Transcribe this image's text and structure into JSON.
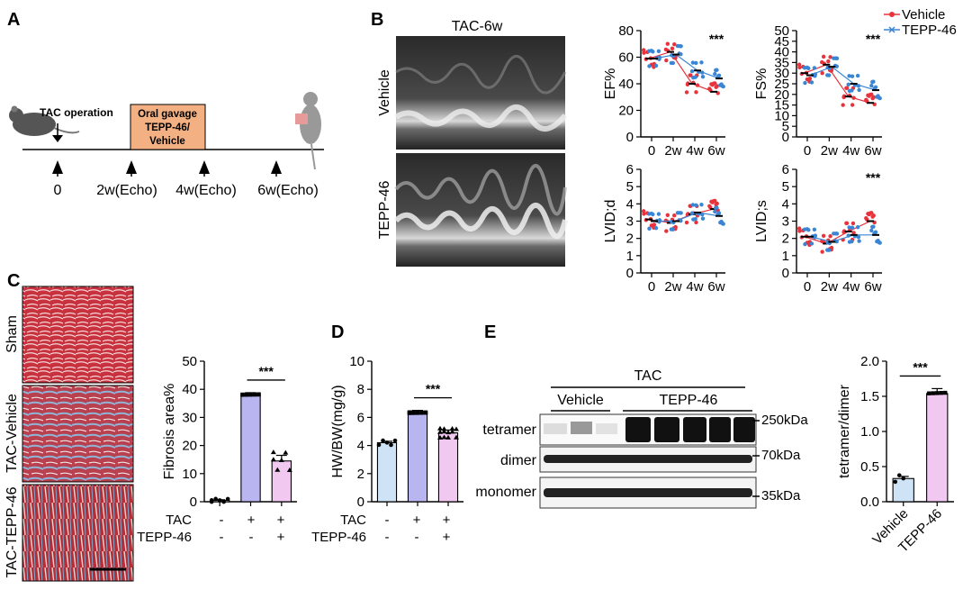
{
  "panels": {
    "a": "A",
    "b": "B",
    "c": "C",
    "d": "D",
    "e": "E"
  },
  "panel_a": {
    "tac_operation": "TAC operation",
    "gavage_line1": "Oral gavage",
    "gavage_line2": "TEPP-46/",
    "gavage_line3": "Vehicle",
    "timepoints": [
      "0",
      "2w(Echo)",
      "4w(Echo)",
      "6w(Echo)"
    ],
    "colors": {
      "gavage_box": "#f3b183"
    }
  },
  "panel_b": {
    "echo_title": "TAC-6w",
    "echo_rows": [
      "Vehicle",
      "TEPP-46"
    ],
    "legend": [
      "Vehicle",
      "TEPP-46"
    ],
    "colors": {
      "vehicle": "#e8323c",
      "tepp": "#3a86d4"
    }
  },
  "panel_c": {
    "histology_rows": [
      "Sham",
      "TAC-Vehicle",
      "TAC-TEPP-46"
    ],
    "row_labels": [
      "TAC",
      "TEPP-46"
    ],
    "row_values": [
      [
        "-",
        "+",
        "+"
      ],
      [
        "-",
        "-",
        "+"
      ]
    ]
  },
  "panel_d": {
    "row_labels": [
      "TAC",
      "TEPP-46"
    ],
    "row_values": [
      [
        "-",
        "+",
        "+"
      ],
      [
        "-",
        "-",
        "+"
      ]
    ]
  },
  "panel_e": {
    "blot_group": "TAC",
    "blot_sub": [
      "Vehicle",
      "TEPP-46"
    ],
    "blot_rows": [
      "tetramer",
      "dimer",
      "monomer"
    ],
    "markers": [
      "250kDa",
      "70kDa",
      "35kDa"
    ]
  },
  "chart_data": [
    {
      "id": "ef",
      "type": "scatter",
      "ylabel": "EF%",
      "categories": [
        "0",
        "2w",
        "4w",
        "6w"
      ],
      "ylim": [
        0,
        80
      ],
      "yticks": [
        0,
        20,
        40,
        60,
        80
      ],
      "annotation": "***",
      "series": [
        {
          "name": "Vehicle",
          "means": [
            59,
            64,
            40,
            34
          ]
        },
        {
          "name": "TEPP-46",
          "means": [
            59,
            62,
            50,
            44
          ]
        }
      ]
    },
    {
      "id": "fs",
      "type": "scatter",
      "ylabel": "FS%",
      "categories": [
        "0",
        "2w",
        "4w",
        "6w"
      ],
      "ylim": [
        0,
        50
      ],
      "yticks": [
        0,
        5,
        10,
        15,
        20,
        25,
        30,
        35,
        40,
        45,
        50
      ],
      "annotation": "***",
      "series": [
        {
          "name": "Vehicle",
          "means": [
            30,
            34,
            19,
            16
          ]
        },
        {
          "name": "TEPP-46",
          "means": [
            29,
            33,
            25,
            22
          ]
        }
      ]
    },
    {
      "id": "lvidd",
      "type": "scatter",
      "ylabel": "LVID;d",
      "categories": [
        "0",
        "2w",
        "4w",
        "6w"
      ],
      "ylim": [
        0,
        6
      ],
      "yticks": [
        0,
        1,
        2,
        3,
        4,
        5,
        6
      ],
      "annotation": "",
      "series": [
        {
          "name": "Vehicle",
          "means": [
            3.1,
            2.9,
            3.4,
            3.7
          ]
        },
        {
          "name": "TEPP-46",
          "means": [
            3.0,
            3.0,
            3.5,
            3.3
          ]
        }
      ]
    },
    {
      "id": "lvids",
      "type": "scatter",
      "ylabel": "LVID;s",
      "categories": [
        "0",
        "2w",
        "4w",
        "6w"
      ],
      "ylim": [
        0,
        6
      ],
      "yticks": [
        0,
        1,
        2,
        3,
        4,
        5,
        6
      ],
      "annotation": "***",
      "series": [
        {
          "name": "Vehicle",
          "means": [
            2.1,
            1.7,
            2.4,
            3.0
          ]
        },
        {
          "name": "TEPP-46",
          "means": [
            2.1,
            1.8,
            2.2,
            2.2
          ]
        }
      ]
    },
    {
      "id": "fibrosis",
      "type": "bar",
      "ylabel": "Fibrosis area%",
      "ylim": [
        0,
        50
      ],
      "yticks": [
        0,
        10,
        20,
        30,
        40,
        50
      ],
      "values": [
        0.5,
        38,
        14.5
      ],
      "errors": [
        0.2,
        0.8,
        2
      ],
      "annotation": "***",
      "colors": [
        "#cfe3f7",
        "#b9b5f0",
        "#f0c8f0"
      ]
    },
    {
      "id": "hwbw",
      "type": "bar",
      "ylabel": "HW/BW(mg/g)",
      "ylim": [
        0,
        10
      ],
      "yticks": [
        0,
        2,
        4,
        6,
        8,
        10
      ],
      "values": [
        4.2,
        6.3,
        4.9
      ],
      "errors": [
        0.1,
        0.2,
        0.2
      ],
      "annotation": "***",
      "colors": [
        "#cfe3f7",
        "#b9b5f0",
        "#f0c8f0"
      ]
    },
    {
      "id": "tetdim",
      "type": "bar",
      "ylabel": "tetramer/dimer",
      "categories": [
        "Vehicle",
        "TEPP-46"
      ],
      "ylim": [
        0,
        2
      ],
      "yticks": [
        "0.0",
        "0.5",
        "1.0",
        "1.5",
        "2.0"
      ],
      "values": [
        0.33,
        1.54
      ],
      "errors": [
        0.03,
        0.07
      ],
      "annotation": "***",
      "colors": [
        "#cfe3f7",
        "#f0c8f0"
      ]
    }
  ]
}
